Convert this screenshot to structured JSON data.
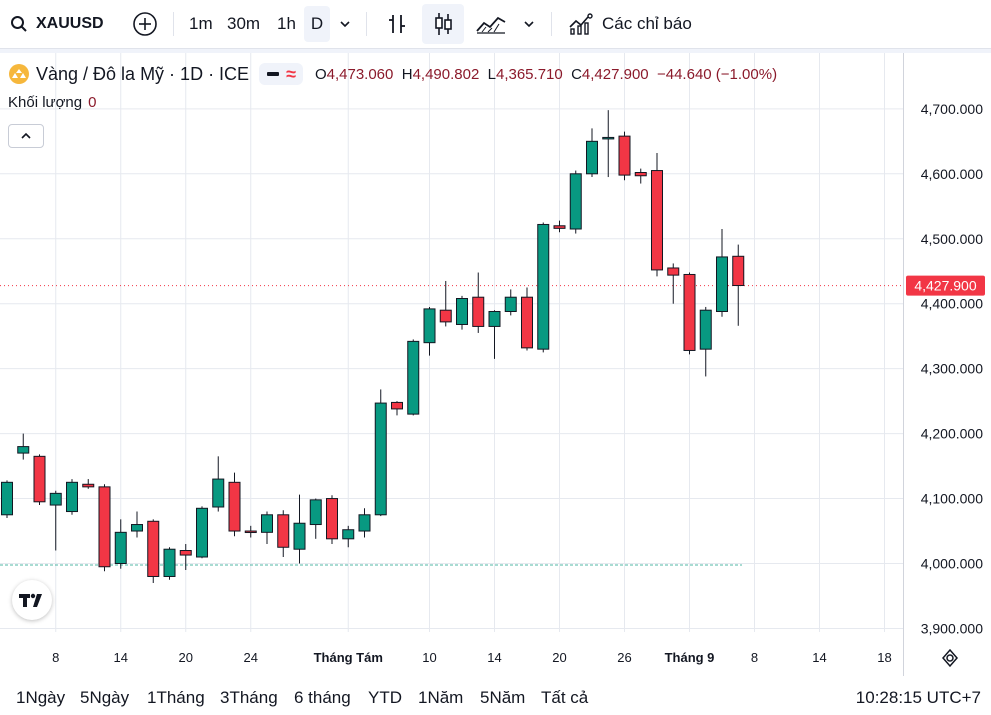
{
  "toolbar": {
    "symbol": "XAUUSD",
    "intervals": [
      "1m",
      "30m",
      "1h",
      "D"
    ],
    "indicators_label": "Các chỉ báo"
  },
  "legend": {
    "name": "Vàng / Đô la Mỹ · 1D · ICE",
    "o_key": "O",
    "o": "4,473.060",
    "h_key": "H",
    "h": "4,490.802",
    "l_key": "L",
    "l": "4,365.710",
    "c_key": "C",
    "c": "4,427.900",
    "change": "−44.640 (−1.00%)"
  },
  "volume": {
    "label": "Khối lượng",
    "value": "0"
  },
  "ranges": [
    "1Ngày",
    "5Ngày",
    "1Tháng",
    "3Tháng",
    "6 tháng",
    "YTD",
    "1Năm",
    "5Năm",
    "Tất cả"
  ],
  "clock": "10:28:15 UTC+7",
  "colors": {
    "up": "#089981",
    "down": "#f23645",
    "last_price": "#f23645"
  },
  "chart_data": {
    "type": "candlestick",
    "y_ticks": [
      "3,900.000",
      "4,000.000",
      "4,100.000",
      "4,200.000",
      "4,300.000",
      "4,400.000",
      "4,500.000",
      "4,600.000",
      "4,700.000"
    ],
    "ylim": [
      3880,
      4770
    ],
    "x_ticks": [
      {
        "i": 3,
        "label": "8"
      },
      {
        "i": 7,
        "label": "14"
      },
      {
        "i": 11,
        "label": "20"
      },
      {
        "i": 15,
        "label": "24"
      },
      {
        "i": 21,
        "label": "Tháng Tám"
      },
      {
        "i": 26,
        "label": "10"
      },
      {
        "i": 30,
        "label": "14"
      },
      {
        "i": 34,
        "label": "20"
      },
      {
        "i": 38,
        "label": "26"
      },
      {
        "i": 42,
        "label": "Tháng 9"
      },
      {
        "i": 46,
        "label": "8"
      },
      {
        "i": 50,
        "label": "14"
      },
      {
        "i": 54,
        "label": "18"
      }
    ],
    "last_price": "4,427.900",
    "last_price_value": 4427.9,
    "candles": [
      [
        4075,
        4125,
        4070,
        4128
      ],
      [
        4170,
        4180,
        4160,
        4200
      ],
      [
        4165,
        4095,
        4090,
        4168
      ],
      [
        4090,
        4108,
        4020,
        4112
      ],
      [
        4080,
        4125,
        4075,
        4130
      ],
      [
        4122,
        4118,
        4115,
        4130
      ],
      [
        4118,
        3995,
        3988,
        4122
      ],
      [
        4000,
        4048,
        3992,
        4068
      ],
      [
        4050,
        4060,
        4040,
        4080
      ],
      [
        4065,
        3980,
        3970,
        4068
      ],
      [
        3980,
        4022,
        3975,
        4025
      ],
      [
        4020,
        4013,
        3990,
        4030
      ],
      [
        4010,
        4085,
        4008,
        4088
      ],
      [
        4087,
        4130,
        4080,
        4165
      ],
      [
        4125,
        4050,
        4042,
        4140
      ],
      [
        4050,
        4048,
        4040,
        4058
      ],
      [
        4048,
        4075,
        4030,
        4080
      ],
      [
        4075,
        4025,
        4010,
        4082
      ],
      [
        4022,
        4062,
        4000,
        4106
      ],
      [
        4060,
        4098,
        4038,
        4100
      ],
      [
        4100,
        4038,
        4030,
        4105
      ],
      [
        4038,
        4052,
        4025,
        4058
      ],
      [
        4050,
        4075,
        4040,
        4085
      ],
      [
        4075,
        4247,
        4073,
        4268
      ],
      [
        4248,
        4238,
        4228,
        4250
      ],
      [
        4230,
        4342,
        4228,
        4345
      ],
      [
        4340,
        4392,
        4320,
        4395
      ],
      [
        4390,
        4372,
        4365,
        4435
      ],
      [
        4368,
        4408,
        4360,
        4412
      ],
      [
        4410,
        4365,
        4355,
        4448
      ],
      [
        4365,
        4388,
        4315,
        4390
      ],
      [
        4388,
        4410,
        4382,
        4422
      ],
      [
        4410,
        4332,
        4328,
        4425
      ],
      [
        4330,
        4522,
        4325,
        4525
      ],
      [
        4520,
        4516,
        4510,
        4528
      ],
      [
        4515,
        4600,
        4508,
        4605
      ],
      [
        4600,
        4650,
        4595,
        4670
      ],
      [
        4656,
        4656,
        4595,
        4698
      ],
      [
        4658,
        4598,
        4590,
        4665
      ],
      [
        4602,
        4597,
        4585,
        4608
      ],
      [
        4605,
        4452,
        4442,
        4632
      ],
      [
        4455,
        4444,
        4400,
        4462
      ],
      [
        4445,
        4328,
        4322,
        4448
      ],
      [
        4330,
        4390,
        4288,
        4395
      ],
      [
        4388,
        4472,
        4380,
        4515
      ],
      [
        4473,
        4428,
        4366,
        4491
      ]
    ]
  }
}
